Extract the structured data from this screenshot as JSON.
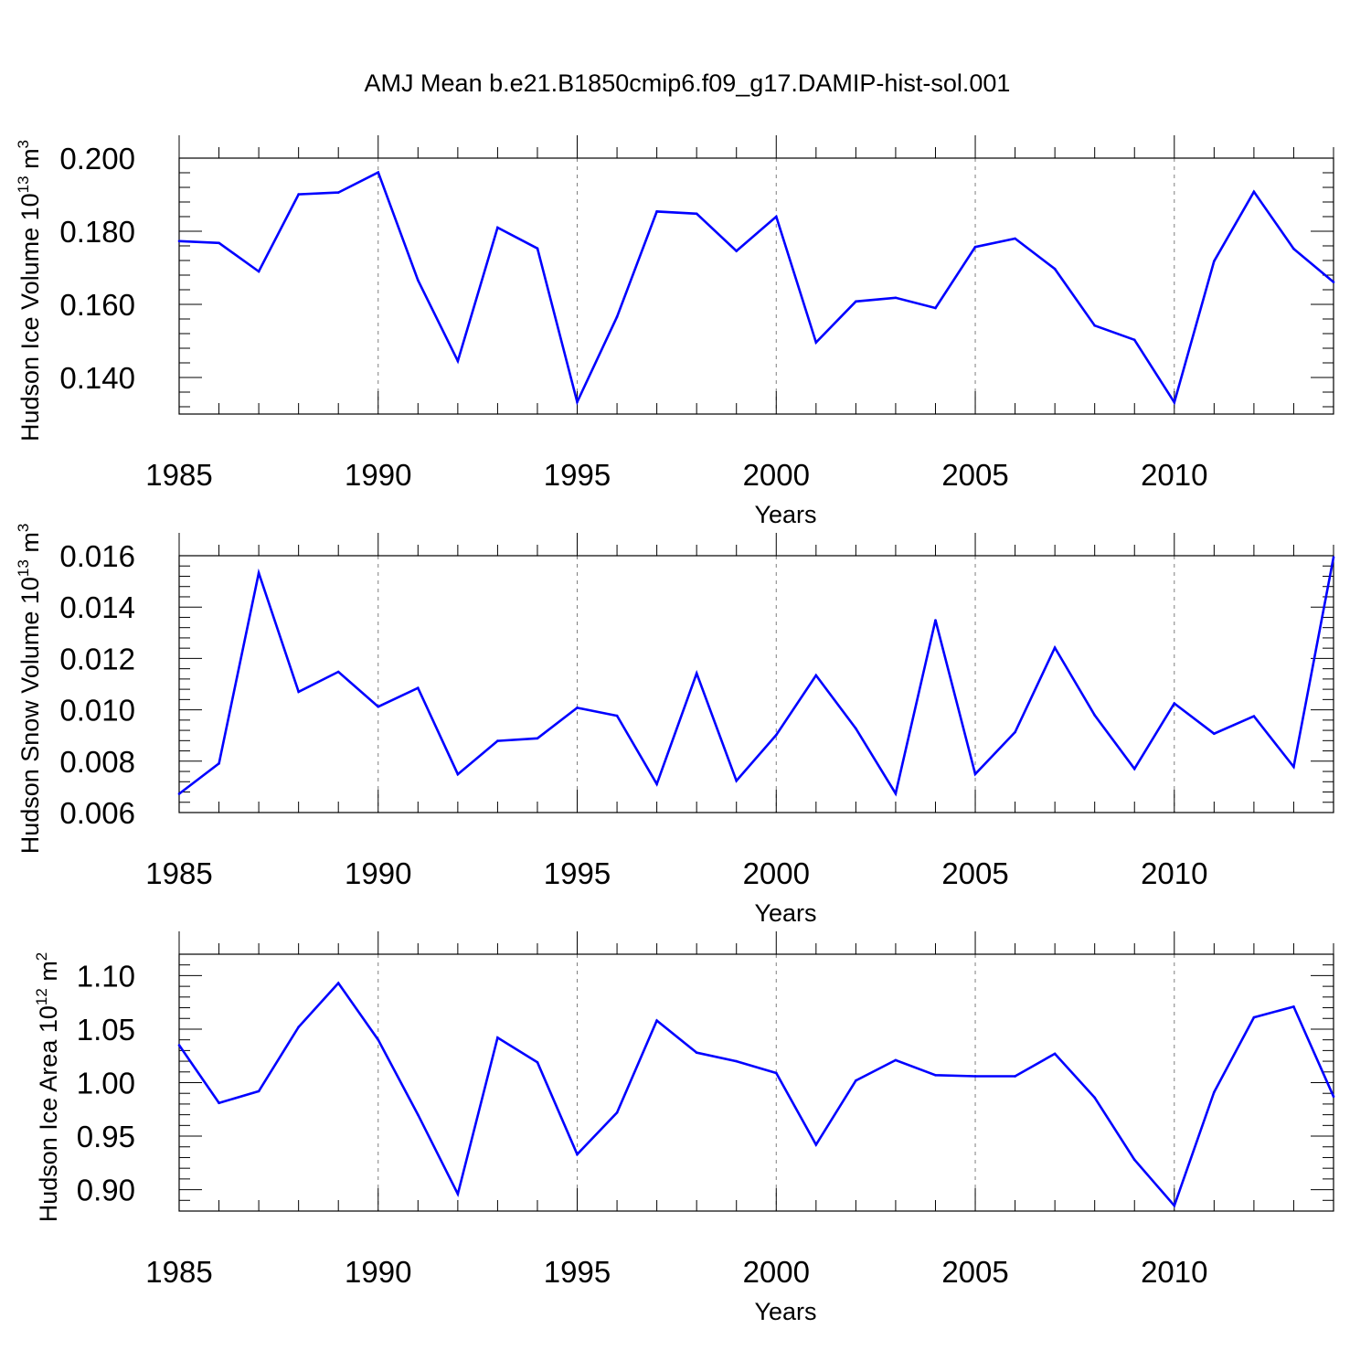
{
  "figure_title": "AMJ Mean b.e21.B1850cmip6.f09_g17.DAMIP-hist-sol.001",
  "colors": {
    "line": "#0000ff",
    "frame": "#000000",
    "grid": "#7f7f7f"
  },
  "chart_data": [
    {
      "type": "line",
      "title": "",
      "xlabel": "Years",
      "ylabel": "Hudson Ice Volume 10",
      "ylabel_exp": "13",
      "ylabel_unit": " m",
      "ylabel_unit_exp": "3",
      "xlim": [
        1985,
        2014
      ],
      "ylim": [
        0.13,
        0.2
      ],
      "xticks": [
        "1985",
        "1990",
        "1995",
        "2000",
        "2005",
        "2010"
      ],
      "yticks": [
        "0.140",
        "0.160",
        "0.180",
        "0.200"
      ],
      "x": [
        1985,
        1986,
        1987,
        1988,
        1989,
        1990,
        1991,
        1992,
        1993,
        1994,
        1995,
        1996,
        1997,
        1998,
        1999,
        2000,
        2001,
        2002,
        2003,
        2004,
        2005,
        2006,
        2007,
        2008,
        2009,
        2010,
        2011,
        2012,
        2013,
        2014
      ],
      "values": [
        0.1773,
        0.1768,
        0.169,
        0.1901,
        0.1906,
        0.1961,
        0.1666,
        0.1445,
        0.181,
        0.1753,
        0.1333,
        0.1566,
        0.1854,
        0.1848,
        0.1746,
        0.184,
        0.1496,
        0.1608,
        0.1618,
        0.159,
        0.1757,
        0.178,
        0.1697,
        0.1542,
        0.1503,
        0.1332,
        0.1718,
        0.1908,
        0.1752,
        0.1661
      ],
      "grid": "dashed vertical at major x ticks"
    },
    {
      "type": "line",
      "title": "",
      "xlabel": "Years",
      "ylabel": "Hudson Snow Volume 10",
      "ylabel_exp": "13",
      "ylabel_unit": " m",
      "ylabel_unit_exp": "3",
      "xlim": [
        1985,
        2014
      ],
      "ylim": [
        0.006,
        0.016
      ],
      "xticks": [
        "1985",
        "1990",
        "1995",
        "2000",
        "2005",
        "2010"
      ],
      "yticks": [
        "0.006",
        "0.008",
        "0.010",
        "0.012",
        "0.014",
        "0.016"
      ],
      "x": [
        1985,
        1986,
        1987,
        1988,
        1989,
        1990,
        1991,
        1992,
        1993,
        1994,
        1995,
        1996,
        1997,
        1998,
        1999,
        2000,
        2001,
        2002,
        2003,
        2004,
        2005,
        2006,
        2007,
        2008,
        2009,
        2010,
        2011,
        2012,
        2013,
        2014
      ],
      "values": [
        0.00673,
        0.00791,
        0.01533,
        0.0107,
        0.01148,
        0.01012,
        0.01085,
        0.00749,
        0.00879,
        0.00889,
        0.01008,
        0.00977,
        0.00711,
        0.01142,
        0.00724,
        0.00902,
        0.01134,
        0.00927,
        0.00674,
        0.01349,
        0.0075,
        0.00913,
        0.01242,
        0.00979,
        0.0077,
        0.01025,
        0.00907,
        0.00975,
        0.00778,
        0.01594
      ],
      "grid": "dashed vertical at major x ticks"
    },
    {
      "type": "line",
      "title": "",
      "xlabel": "Years",
      "ylabel": "Hudson Ice Area 10",
      "ylabel_exp": "12",
      "ylabel_unit": " m",
      "ylabel_unit_exp": "2",
      "xlim": [
        1985,
        2014
      ],
      "ylim": [
        0.88,
        1.12
      ],
      "xticks": [
        "1985",
        "1990",
        "1995",
        "2000",
        "2005",
        "2010"
      ],
      "yticks": [
        "0.90",
        "0.95",
        "1.00",
        "1.05",
        "1.10"
      ],
      "x": [
        1985,
        1986,
        1987,
        1988,
        1989,
        1990,
        1991,
        1992,
        1993,
        1994,
        1995,
        1996,
        1997,
        1998,
        1999,
        2000,
        2001,
        2002,
        2003,
        2004,
        2005,
        2006,
        2007,
        2008,
        2009,
        2010,
        2011,
        2012,
        2013,
        2014
      ],
      "values": [
        1.035,
        0.981,
        0.992,
        1.052,
        1.093,
        1.04,
        0.97,
        0.896,
        1.042,
        1.019,
        0.933,
        0.972,
        1.058,
        1.028,
        1.02,
        1.009,
        0.942,
        1.002,
        1.021,
        1.007,
        1.006,
        1.006,
        1.027,
        0.986,
        0.928,
        0.885,
        0.991,
        1.061,
        1.071,
        0.987
      ],
      "grid": "dashed vertical at major x ticks"
    }
  ]
}
